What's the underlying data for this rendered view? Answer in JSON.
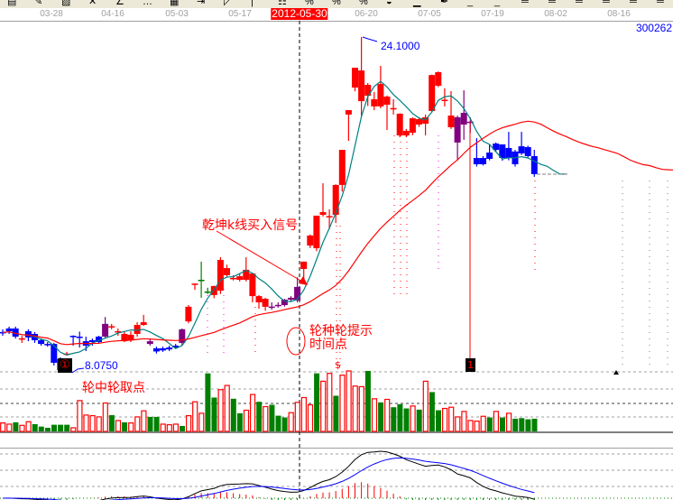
{
  "toolbar": {
    "icons": [
      "bar-chart-icon",
      "candle-icon",
      "fill-icon",
      "cross-icon",
      "line-draw-icon",
      "dots-icon",
      "grid-icon",
      "arrow-box-icon",
      "trend-icon",
      "separator",
      "table-icon",
      "percent-icon",
      "percent2-icon",
      "percent3-icon",
      "bowl-icon",
      "baseline-icon",
      "pen-icon",
      "underline-icon",
      "underline2-icon",
      "line1-icon",
      "line2-icon",
      "line3-icon",
      "line4-icon",
      "line5-icon",
      "line6-icon"
    ]
  },
  "axis": {
    "dates": [
      "03-28",
      "04-16",
      "05-03",
      "05-17",
      "2012-05-30",
      "06-20",
      "07-05",
      "07-19",
      "08-02",
      "08-16"
    ],
    "highlighted": "2012-05-30"
  },
  "stock_code": "300262",
  "annotations": {
    "buy_signal": "乾坤k线买入信号",
    "wheel_hint_1": "轮种轮提示",
    "wheel_hint_2": "时间点",
    "pick_point": "轮中轮取点",
    "low_value": "8.0750",
    "high_value": "24.1000",
    "dollar": "$",
    "marker_1": "1",
    "marker_circled": "①"
  },
  "colors": {
    "up": "#ff0000",
    "down": "#0000ff",
    "signal": "#800080",
    "doji": "#008000",
    "ma_fast": "#008080",
    "ma_slow": "#ff0000",
    "vol_down": "#008000",
    "dif": "#000000",
    "dea": "#0000ff"
  },
  "chart_data": {
    "type": "candlestick",
    "price_range": [
      8.075,
      24.1
    ],
    "grid": "dashed horizontal in volume and MACD panels",
    "candle_fields": [
      "open",
      "high",
      "low",
      "close",
      "type"
    ],
    "candles": [
      [
        9.98,
        10.11,
        9.8,
        9.96,
        "down"
      ],
      [
        10.15,
        10.24,
        9.89,
        10.02,
        "down"
      ],
      [
        10.15,
        10.24,
        9.67,
        9.76,
        "down"
      ],
      [
        9.67,
        9.8,
        9.46,
        9.68,
        "up"
      ],
      [
        10.02,
        10.11,
        9.54,
        9.72,
        "down"
      ],
      [
        9.89,
        9.98,
        9.46,
        9.59,
        "down"
      ],
      [
        9.59,
        9.67,
        9.33,
        9.41,
        "down"
      ],
      [
        9.41,
        9.5,
        9.28,
        9.4,
        "down"
      ],
      [
        9.41,
        9.46,
        8.38,
        8.51,
        "down"
      ],
      [
        8.68,
        8.77,
        8.075,
        8.16,
        "down"
      ],
      [
        8.9,
        9.03,
        8.85,
        8.95,
        "up"
      ],
      [
        9.8,
        9.82,
        9.33,
        9.78,
        "down"
      ],
      [
        9.76,
        10.0,
        9.24,
        9.74,
        "down"
      ],
      [
        9.54,
        9.76,
        9.07,
        9.33,
        "down"
      ],
      [
        9.59,
        9.67,
        9.33,
        9.5,
        "down"
      ],
      [
        9.76,
        9.8,
        9.41,
        9.5,
        "down"
      ],
      [
        9.76,
        10.7,
        9.67,
        10.37,
        "signal"
      ],
      [
        10.24,
        10.37,
        10.11,
        10.26,
        "up"
      ],
      [
        10.0,
        10.15,
        9.8,
        10.02,
        "up"
      ],
      [
        9.54,
        10.02,
        9.5,
        9.89,
        "up"
      ],
      [
        9.6,
        10.02,
        9.5,
        9.85,
        "up"
      ],
      [
        9.89,
        10.45,
        9.76,
        10.32,
        "up"
      ],
      [
        10.32,
        10.8,
        10.28,
        10.45,
        "up"
      ],
      [
        9.54,
        9.67,
        9.33,
        9.41,
        "signal"
      ],
      [
        9.2,
        9.28,
        8.95,
        9.05,
        "down"
      ],
      [
        9.2,
        9.28,
        9.03,
        9.1,
        "down"
      ],
      [
        9.24,
        9.33,
        9.07,
        9.15,
        "down"
      ],
      [
        9.33,
        9.41,
        9.2,
        9.24,
        "down"
      ],
      [
        9.46,
        10.15,
        9.33,
        10.11,
        "signal"
      ],
      [
        10.49,
        11.27,
        10.4,
        11.19,
        "up"
      ],
      [
        12.27,
        12.3,
        12.0,
        12.3,
        "up"
      ],
      [
        12.48,
        13.35,
        11.62,
        12.48,
        "doji"
      ],
      [
        11.92,
        12.1,
        11.8,
        11.92,
        "doji"
      ],
      [
        11.75,
        12.2,
        11.6,
        12.18,
        "up"
      ],
      [
        11.96,
        13.56,
        11.8,
        13.43,
        "up"
      ],
      [
        12.7,
        13.2,
        12.6,
        13.04,
        "up"
      ],
      [
        12.55,
        12.7,
        12.45,
        12.57,
        "up"
      ],
      [
        12.48,
        12.75,
        12.4,
        12.65,
        "up"
      ],
      [
        12.48,
        13.56,
        12.4,
        12.96,
        "up"
      ],
      [
        11.7,
        12.82,
        11.4,
        12.78,
        "up"
      ],
      [
        11.4,
        11.75,
        11.1,
        11.7,
        "up"
      ],
      [
        11.19,
        11.62,
        11.0,
        11.57,
        "up"
      ],
      [
        11.19,
        11.4,
        11.05,
        11.2,
        "signal"
      ],
      [
        11.27,
        11.4,
        11.15,
        11.28,
        "signal"
      ],
      [
        11.27,
        11.57,
        11.2,
        11.53,
        "signal"
      ],
      [
        11.53,
        11.7,
        11.45,
        11.62,
        "signal"
      ],
      [
        11.49,
        12.6,
        11.4,
        12.14,
        "signal"
      ],
      [
        13.0,
        13.35,
        12.48,
        13.35,
        "up"
      ],
      [
        14.12,
        14.65,
        14.0,
        14.6,
        "up"
      ],
      [
        13.99,
        15.55,
        13.85,
        15.55,
        "up"
      ],
      [
        15.59,
        17.1,
        15.51,
        15.72,
        "up"
      ],
      [
        15.51,
        15.85,
        14.9,
        15.53,
        "up"
      ],
      [
        15.59,
        17.05,
        15.2,
        17.02,
        "up"
      ],
      [
        17.02,
        18.7,
        16.7,
        18.7,
        "up"
      ],
      [
        20.39,
        20.6,
        19.13,
        20.6,
        "up"
      ],
      [
        21.68,
        22.63,
        21.5,
        22.63,
        "up"
      ],
      [
        21.03,
        24.1,
        20.3,
        22.5,
        "up"
      ],
      [
        21.29,
        21.9,
        20.8,
        21.81,
        "up"
      ],
      [
        20.78,
        21.47,
        20.6,
        21.12,
        "up"
      ],
      [
        20.78,
        22.72,
        20.69,
        21.85,
        "up"
      ],
      [
        20.86,
        21.3,
        19.65,
        21.25,
        "up"
      ],
      [
        20.69,
        21.12,
        20.39,
        20.7,
        "up"
      ],
      [
        19.39,
        20.45,
        19.3,
        20.43,
        "up"
      ],
      [
        19.39,
        19.7,
        19.3,
        19.61,
        "up"
      ],
      [
        19.52,
        20.25,
        19.4,
        20.21,
        "up"
      ],
      [
        19.91,
        20.25,
        19.8,
        20.17,
        "up"
      ],
      [
        19.95,
        20.39,
        19.39,
        20.26,
        "up"
      ],
      [
        20.56,
        22.3,
        20.5,
        22.28,
        "up"
      ],
      [
        21.77,
        22.45,
        21.7,
        22.42,
        "up"
      ],
      [
        21.08,
        21.64,
        20.78,
        21.1,
        "up"
      ],
      [
        19.78,
        21.51,
        19.7,
        20.34,
        "up"
      ],
      [
        20.26,
        20.34,
        18.23,
        19.05,
        "signal"
      ],
      [
        19.91,
        21.55,
        19.18,
        20.47,
        "signal"
      ],
      [
        20.04,
        20.26,
        19.52,
        20.05,
        "signal"
      ],
      [
        18.31,
        19.26,
        17.9,
        18.01,
        "down"
      ],
      [
        18.31,
        18.4,
        17.95,
        18.01,
        "down"
      ],
      [
        18.57,
        18.96,
        18.2,
        18.27,
        "down"
      ],
      [
        19.0,
        19.05,
        18.6,
        18.7,
        "down"
      ],
      [
        18.96,
        18.96,
        18.18,
        18.31,
        "down"
      ],
      [
        18.79,
        19.56,
        18.2,
        18.31,
        "down"
      ],
      [
        18.62,
        18.7,
        17.9,
        18.01,
        "down"
      ],
      [
        18.87,
        19.56,
        18.45,
        18.53,
        "down"
      ],
      [
        18.83,
        18.9,
        18.3,
        18.4,
        "down"
      ],
      [
        18.4,
        18.7,
        17.41,
        17.54,
        "down"
      ]
    ],
    "volume_relative": [
      14,
      12,
      15,
      10,
      16,
      12,
      8,
      6,
      11,
      11,
      11,
      6,
      51,
      27,
      26,
      24,
      47,
      27,
      18,
      15,
      14,
      24,
      34,
      24,
      24,
      12,
      11,
      12,
      9,
      26,
      49,
      30,
      96,
      56,
      69,
      76,
      54,
      30,
      35,
      61,
      49,
      41,
      44,
      26,
      23,
      31,
      48,
      56,
      44,
      96,
      83,
      96,
      59,
      93,
      100,
      75,
      74,
      100,
      54,
      48,
      53,
      40,
      45,
      38,
      42,
      36,
      83,
      65,
      35,
      38,
      40,
      24,
      33,
      18,
      17,
      25,
      23,
      33,
      23,
      30,
      21,
      22,
      20,
      21
    ],
    "volume_type": [
      "u",
      "u",
      "d",
      "u",
      "u",
      "d",
      "d",
      "d",
      "d",
      "d",
      "d",
      "u",
      "u",
      "u",
      "u",
      "u",
      "u",
      "d",
      "u",
      "d",
      "u",
      "u",
      "u",
      "d",
      "d",
      "u",
      "u",
      "u",
      "d",
      "u",
      "u",
      "u",
      "d",
      "d",
      "u",
      "u",
      "d",
      "d",
      "u",
      "u",
      "d",
      "u",
      "d",
      "d",
      "d",
      "u",
      "u",
      "u",
      "u",
      "d",
      "u",
      "u",
      "d",
      "u",
      "u",
      "u",
      "u",
      "d",
      "u",
      "d",
      "u",
      "d",
      "d",
      "d",
      "u",
      "d",
      "u",
      "d",
      "d",
      "u",
      "u",
      "u",
      "u",
      "u",
      "u",
      "u",
      "d",
      "u",
      "d",
      "u",
      "d",
      "d",
      "d",
      "d"
    ],
    "moving_averages": [
      "fast (teal)",
      "slow (red)"
    ],
    "indicator": "MACD (DIF black, DEA blue, histogram red/green)"
  }
}
